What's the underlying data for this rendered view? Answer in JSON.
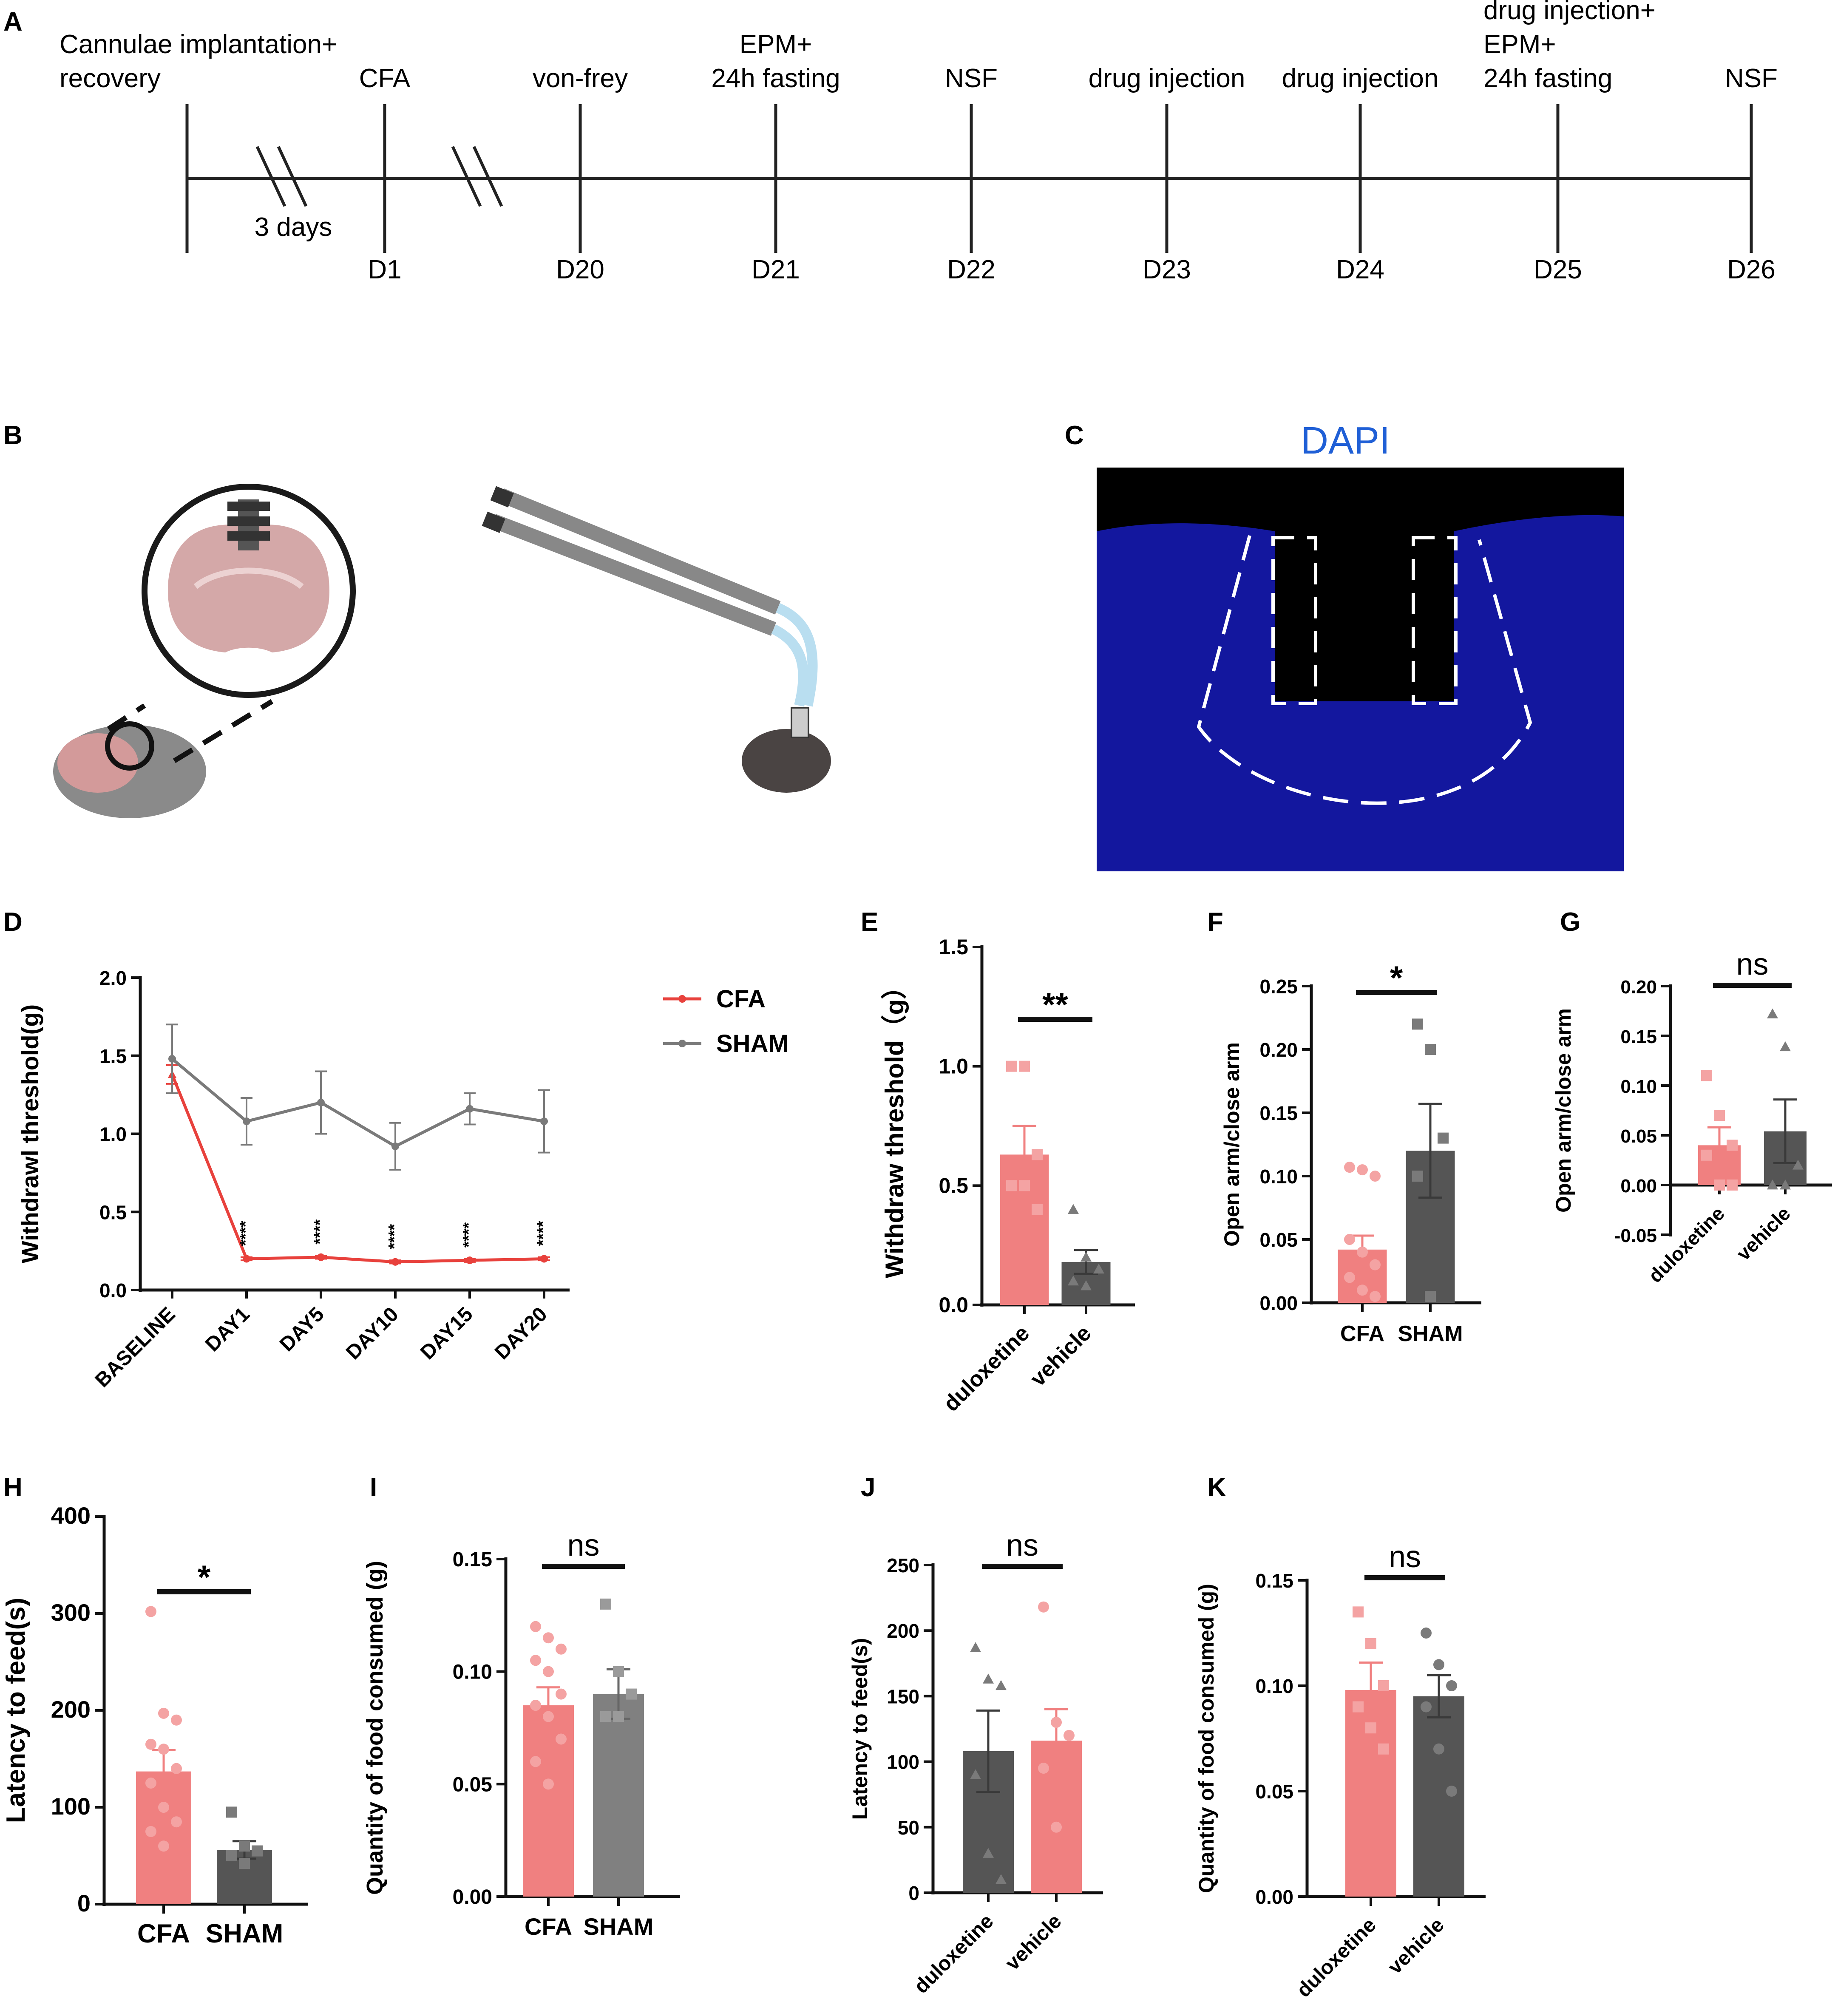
{
  "panels": {
    "A": "A",
    "B": "B",
    "C": "C",
    "D": "D",
    "E": "E",
    "F": "F",
    "G": "G",
    "H": "H",
    "I": "I",
    "J": "J",
    "K": "K"
  },
  "timeline": {
    "events": [
      {
        "top": [
          "Cannulae implantation+",
          "recovery"
        ],
        "day": ""
      },
      {
        "top": [
          "CFA"
        ],
        "day": "D1"
      },
      {
        "top": [
          "von-frey"
        ],
        "day": "D20"
      },
      {
        "top": [
          "EPM+",
          "24h fasting"
        ],
        "day": "D21"
      },
      {
        "top": [
          "NSF"
        ],
        "day": "D22"
      },
      {
        "top": [
          "drug injection"
        ],
        "day": "D23"
      },
      {
        "top": [
          "drug injection"
        ],
        "day": "D24"
      },
      {
        "top": [
          "drug injection+",
          "EPM+",
          "24h fasting"
        ],
        "day": "D25"
      },
      {
        "top": [
          "NSF"
        ],
        "day": "D26"
      }
    ],
    "interval_label": "3 days"
  },
  "micrograph": {
    "stain": "DAPI",
    "stain_color": "#1f5fd6"
  },
  "colors": {
    "cfa": "#f08080",
    "sham": "#808080",
    "drug": "#f08080",
    "vehicle": "#555555",
    "line_cfa": "#e8413c",
    "line_sham": "#7a7a7a"
  },
  "chart_data": [
    {
      "id": "D",
      "type": "line",
      "title": "",
      "xlabel": "",
      "ylabel": "Withdrawl threshold(g)",
      "categories": [
        "BASELINE",
        "DAY1",
        "DAY5",
        "DAY10",
        "DAY15",
        "DAY20"
      ],
      "series": [
        {
          "name": "CFA",
          "values": [
            1.38,
            0.2,
            0.21,
            0.18,
            0.19,
            0.2
          ],
          "errors": [
            0.06,
            0.01,
            0.01,
            0.01,
            0.01,
            0.01
          ]
        },
        {
          "name": "SHAM",
          "values": [
            1.48,
            1.08,
            1.2,
            0.92,
            1.16,
            1.08
          ],
          "errors": [
            0.22,
            0.15,
            0.2,
            0.15,
            0.1,
            0.2
          ]
        }
      ],
      "ylim": [
        0,
        2.0
      ],
      "yticks": [
        "0.0",
        "0.5",
        "1.0",
        "1.5",
        "2.0"
      ],
      "annotations": [
        "****",
        "****",
        "****",
        "****",
        "****"
      ],
      "legend": "top-right"
    },
    {
      "id": "E",
      "type": "bar",
      "ylabel": "Withdraw threshold（g）",
      "categories": [
        "duloxetine",
        "vehicle"
      ],
      "values": [
        0.63,
        0.18
      ],
      "errors": [
        0.12,
        0.05
      ],
      "points": [
        [
          1.0,
          1.0,
          0.63,
          0.5,
          0.5,
          0.4
        ],
        [
          0.4,
          0.2,
          0.15,
          0.1,
          0.08
        ]
      ],
      "ylim": [
        0,
        1.5
      ],
      "yticks": [
        "0.0",
        "0.5",
        "1.0",
        "1.5"
      ],
      "significance": "**"
    },
    {
      "id": "F",
      "type": "bar",
      "ylabel": "Open arm/close arm",
      "categories": [
        "CFA",
        "SHAM"
      ],
      "values": [
        0.042,
        0.12
      ],
      "errors": [
        0.011,
        0.037
      ],
      "points": [
        [
          0.107,
          0.105,
          0.1,
          0.05,
          0.04,
          0.03,
          0.02,
          0.01,
          0.005
        ],
        [
          0.22,
          0.2,
          0.13,
          0.1,
          0.005
        ]
      ],
      "ylim": [
        0,
        0.25
      ],
      "yticks": [
        "0.00",
        "0.05",
        "0.10",
        "0.15",
        "0.20",
        "0.25"
      ],
      "significance": "*"
    },
    {
      "id": "G",
      "type": "bar",
      "ylabel": "Open arm/close arm",
      "categories": [
        "duloxetine",
        "vehicle"
      ],
      "values": [
        0.04,
        0.054
      ],
      "errors": [
        0.018,
        0.032
      ],
      "points": [
        [
          0.11,
          0.07,
          0.04,
          0.03,
          0.0,
          0.0
        ],
        [
          0.172,
          0.139,
          0.02,
          0.0,
          0.0
        ]
      ],
      "ylim": [
        -0.05,
        0.2
      ],
      "yticks": [
        "-0.05",
        "0.00",
        "0.05",
        "0.10",
        "0.15",
        "0.20"
      ],
      "significance": "ns"
    },
    {
      "id": "H",
      "type": "bar",
      "ylabel": "Latency to feed(s)",
      "categories": [
        "CFA",
        "SHAM"
      ],
      "values": [
        137,
        56
      ],
      "errors": [
        22,
        9
      ],
      "points": [
        [
          302,
          197,
          190,
          165,
          160,
          140,
          125,
          100,
          85,
          75,
          60
        ],
        [
          95,
          60,
          55,
          50,
          42
        ]
      ],
      "ylim": [
        0,
        400
      ],
      "yticks": [
        "0",
        "100",
        "200",
        "300",
        "400"
      ],
      "significance": "*"
    },
    {
      "id": "I",
      "type": "bar",
      "ylabel": "Quantity of food consumed (g)",
      "categories": [
        "CFA",
        "SHAM"
      ],
      "values": [
        0.085,
        0.09
      ],
      "errors": [
        0.008,
        0.011
      ],
      "points": [
        [
          0.12,
          0.115,
          0.11,
          0.105,
          0.1,
          0.09,
          0.085,
          0.08,
          0.07,
          0.06,
          0.05
        ],
        [
          0.13,
          0.1,
          0.09,
          0.08,
          0.08
        ]
      ],
      "ylim": [
        0,
        0.15
      ],
      "yticks": [
        "0.00",
        "0.05",
        "0.10",
        "0.15"
      ],
      "significance": "ns"
    },
    {
      "id": "J",
      "type": "bar",
      "ylabel": "Latency to feed(s)",
      "categories": [
        "duloxetine",
        "vehicle"
      ],
      "values": [
        108,
        116
      ],
      "errors": [
        31,
        24
      ],
      "points": [
        [
          187,
          163,
          158,
          90,
          30,
          10
        ],
        [
          218,
          130,
          120,
          95,
          50
        ]
      ],
      "ylim": [
        0,
        250
      ],
      "yticks": [
        "0",
        "50",
        "100",
        "150",
        "200",
        "250"
      ],
      "significance": "ns"
    },
    {
      "id": "K",
      "type": "bar",
      "ylabel": "Quantity of food consumed (g)",
      "categories": [
        "duloxetine",
        "vehicle"
      ],
      "values": [
        0.098,
        0.095
      ],
      "errors": [
        0.013,
        0.01
      ],
      "points": [
        [
          0.135,
          0.12,
          0.1,
          0.09,
          0.08,
          0.07
        ],
        [
          0.125,
          0.11,
          0.1,
          0.09,
          0.07,
          0.05
        ]
      ],
      "ylim": [
        0,
        0.15
      ],
      "yticks": [
        "0.00",
        "0.05",
        "0.10",
        "0.15"
      ],
      "significance": "ns"
    }
  ]
}
